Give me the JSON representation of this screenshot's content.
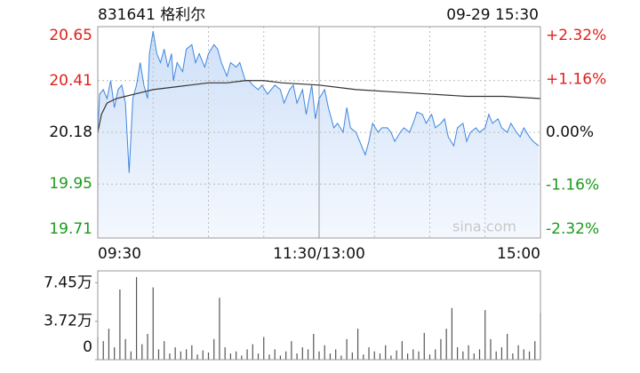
{
  "chart_data": [
    {
      "type": "line",
      "title": "831641 格利尔",
      "subtitle": "09-29 15:30",
      "watermark": "sina.com",
      "xlim": [
        0,
        240
      ],
      "xticks": [
        {
          "value": 0,
          "label": "09:30"
        },
        {
          "value": 120,
          "label": "11:30/13:00"
        },
        {
          "value": 240,
          "label": "15:00"
        }
      ],
      "xgrid": [
        30,
        60,
        90,
        150,
        180,
        210
      ],
      "ylim": [
        19.71,
        20.65
      ],
      "yticks": [
        20.65,
        20.41,
        20.18,
        19.95,
        19.71
      ],
      "y2lim": [
        -2.32,
        2.32
      ],
      "y2ticks": [
        {
          "value": 2.32,
          "label": "+2.32%"
        },
        {
          "value": 1.16,
          "label": "+1.16%"
        },
        {
          "value": 0,
          "label": "0.00%"
        },
        {
          "value": -1.16,
          "label": "-1.16%"
        },
        {
          "value": -2.32,
          "label": "-2.32%"
        }
      ],
      "up_color": "#e0201b",
      "down_color": "#1a9a1a",
      "grid": true,
      "series": [
        {
          "color": "#3f86e0",
          "fill": true,
          "x": [
            0,
            1,
            3,
            5,
            7,
            9,
            11,
            13,
            15,
            17,
            19,
            21,
            23,
            25,
            27,
            28,
            30,
            32,
            34,
            36,
            38,
            40,
            41,
            43,
            46,
            48,
            51,
            53,
            55,
            58,
            60,
            63,
            65,
            67,
            70,
            72,
            75,
            77,
            80,
            82,
            84,
            87,
            89,
            92,
            94,
            96,
            99,
            101,
            104,
            106,
            108,
            111,
            113,
            116,
            118,
            120,
            123,
            125,
            128,
            130,
            133,
            135,
            137,
            140,
            142,
            145,
            147,
            149,
            152,
            154,
            157,
            159,
            161,
            164,
            166,
            169,
            171,
            173,
            176,
            178,
            181,
            183,
            186,
            188,
            190,
            193,
            195,
            198,
            200,
            202,
            205,
            207,
            210,
            212,
            214,
            217,
            219,
            222,
            224,
            227,
            229,
            231,
            234,
            236,
            239
          ],
          "values": [
            20.18,
            20.35,
            20.37,
            20.33,
            20.41,
            20.29,
            20.37,
            20.39,
            20.31,
            20.0,
            20.33,
            20.39,
            20.49,
            20.39,
            20.33,
            20.53,
            20.63,
            20.53,
            20.49,
            20.55,
            20.47,
            20.53,
            20.41,
            20.49,
            20.45,
            20.55,
            20.57,
            20.49,
            20.53,
            20.47,
            20.53,
            20.57,
            20.55,
            20.49,
            20.43,
            20.49,
            20.47,
            20.49,
            20.41,
            20.41,
            20.39,
            20.37,
            20.39,
            20.35,
            20.37,
            20.39,
            20.37,
            20.31,
            20.37,
            20.39,
            20.31,
            20.37,
            20.26,
            20.39,
            20.24,
            20.33,
            20.37,
            20.29,
            20.2,
            20.22,
            20.18,
            20.29,
            20.2,
            20.18,
            20.14,
            20.08,
            20.14,
            20.22,
            20.18,
            20.2,
            20.2,
            20.18,
            20.14,
            20.18,
            20.2,
            20.18,
            20.22,
            20.27,
            20.26,
            20.22,
            20.26,
            20.2,
            20.22,
            20.24,
            20.16,
            20.12,
            20.2,
            20.22,
            20.14,
            20.18,
            20.2,
            20.18,
            20.2,
            20.26,
            20.22,
            20.24,
            20.2,
            20.18,
            20.22,
            20.18,
            20.16,
            20.2,
            20.16,
            20.14,
            20.12
          ]
        },
        {
          "color": "#333333",
          "fill": false,
          "x": [
            0,
            2,
            5,
            10,
            15,
            20,
            25,
            30,
            40,
            50,
            60,
            70,
            80,
            90,
            100,
            120,
            140,
            160,
            180,
            200,
            220,
            240
          ],
          "values": [
            20.18,
            20.26,
            20.31,
            20.33,
            20.34,
            20.35,
            20.36,
            20.37,
            20.38,
            20.39,
            20.4,
            20.4,
            20.41,
            20.41,
            20.4,
            20.39,
            20.37,
            20.36,
            20.35,
            20.34,
            20.34,
            20.33
          ]
        }
      ]
    },
    {
      "type": "bar",
      "xlim": [
        0,
        240
      ],
      "ylim": [
        0,
        86000
      ],
      "color": "#555555",
      "yticks": [
        {
          "value": 74500,
          "label": "7.45万"
        },
        {
          "value": 37200,
          "label": "3.72万"
        },
        0
      ],
      "x": [
        0,
        3,
        6,
        9,
        12,
        15,
        18,
        21,
        24,
        27,
        30,
        33,
        36,
        39,
        42,
        45,
        48,
        51,
        54,
        57,
        60,
        63,
        66,
        69,
        72,
        75,
        78,
        81,
        84,
        87,
        90,
        93,
        96,
        99,
        102,
        105,
        108,
        111,
        114,
        117,
        120,
        123,
        126,
        129,
        132,
        135,
        138,
        141,
        144,
        147,
        150,
        153,
        156,
        159,
        162,
        165,
        168,
        171,
        174,
        177,
        180,
        183,
        186,
        189,
        192,
        195,
        198,
        201,
        204,
        207,
        210,
        213,
        216,
        219,
        222,
        225,
        228,
        231,
        234,
        237,
        240
      ],
      "values": [
        22000,
        18000,
        30000,
        12000,
        68000,
        20000,
        8000,
        80000,
        15000,
        25000,
        70000,
        10000,
        18000,
        6000,
        12000,
        8000,
        10000,
        14000,
        5000,
        9000,
        7000,
        20000,
        60000,
        12000,
        6000,
        8000,
        4000,
        10000,
        15000,
        6000,
        22000,
        5000,
        10000,
        4000,
        8000,
        18000,
        6000,
        12000,
        10000,
        25000,
        8000,
        14000,
        6000,
        10000,
        4000,
        20000,
        7000,
        30000,
        5000,
        12000,
        8000,
        6000,
        14000,
        4000,
        9000,
        18000,
        6000,
        10000,
        8000,
        26000,
        5000,
        10000,
        20000,
        30000,
        50000,
        12000,
        8000,
        14000,
        6000,
        10000,
        48000,
        20000,
        8000,
        12000,
        25000,
        6000,
        14000,
        10000,
        8000,
        18000,
        45000
      ]
    }
  ]
}
